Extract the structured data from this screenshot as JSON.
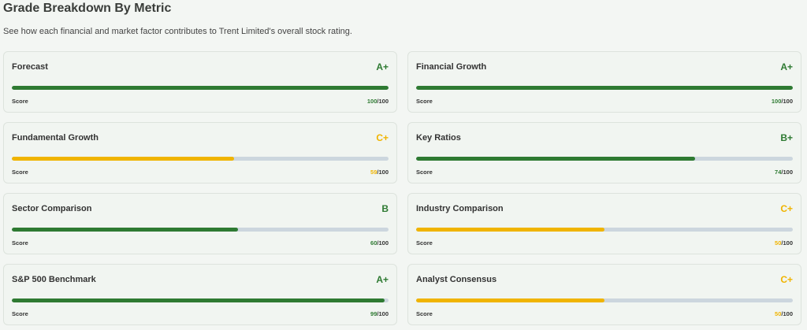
{
  "header": {
    "title": "Grade Breakdown By Metric",
    "subtitle": "See how each financial and market factor contributes to Trent Limited's overall stock rating."
  },
  "range": [
    0,
    100
  ],
  "cards": [
    {
      "name": "Forecast",
      "grade": "A+",
      "score_label": "Score",
      "score": 100,
      "max_label": "/100",
      "color": "#2e7a32"
    },
    {
      "name": "Financial Growth",
      "grade": "A+",
      "score_label": "Score",
      "score": 100,
      "max_label": "/100",
      "color": "#2e7a32"
    },
    {
      "name": "Fundamental Growth",
      "grade": "C+",
      "score_label": "Score",
      "score": 59,
      "max_label": "/100",
      "color": "#f0b400"
    },
    {
      "name": "Key Ratios",
      "grade": "B+",
      "score_label": "Score",
      "score": 74,
      "max_label": "/100",
      "color": "#2e7a32"
    },
    {
      "name": "Sector Comparison",
      "grade": "B",
      "score_label": "Score",
      "score": 60,
      "max_label": "/100",
      "color": "#2e7a32"
    },
    {
      "name": "Industry Comparison",
      "grade": "C+",
      "score_label": "Score",
      "score": 50,
      "max_label": "/100",
      "color": "#f0b400"
    },
    {
      "name": "S&P 500 Benchmark",
      "grade": "A+",
      "score_label": "Score",
      "score": 99,
      "max_label": "/100",
      "color": "#2e7a32"
    },
    {
      "name": "Analyst Consensus",
      "grade": "C+",
      "score_label": "Score",
      "score": 50,
      "max_label": "/100",
      "color": "#f0b400"
    }
  ]
}
